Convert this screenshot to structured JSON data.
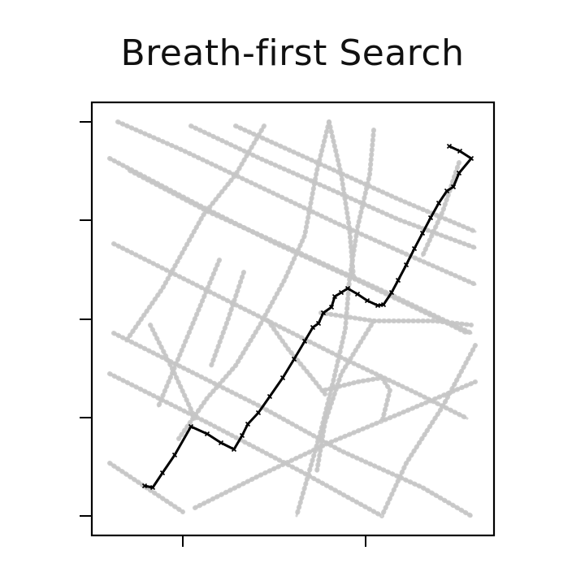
{
  "chart_data": {
    "type": "line",
    "title": "Breath-first Search",
    "xlabel": "",
    "ylabel": "",
    "x_tick_labels": [
      "",
      ""
    ],
    "y_tick_labels": [
      "",
      "",
      "",
      "",
      ""
    ],
    "grid": false,
    "legend": "none",
    "colors": {
      "network": "#c4c4c4",
      "search_path": "#000000",
      "frame": "#000000"
    },
    "network_edges": [
      [
        [
          145,
          150
        ],
        [
          225,
          185
        ],
        [
          320,
          230
        ],
        [
          415,
          275
        ],
        [
          505,
          315
        ],
        [
          585,
          350
        ]
      ],
      [
        [
          135,
          195
        ],
        [
          240,
          250
        ],
        [
          340,
          300
        ],
        [
          440,
          345
        ],
        [
          545,
          395
        ],
        [
          575,
          410
        ]
      ],
      [
        [
          160,
          210
        ],
        [
          255,
          260
        ],
        [
          355,
          305
        ],
        [
          465,
          355
        ],
        [
          580,
          410
        ]
      ],
      [
        [
          235,
          155
        ],
        [
          320,
          195
        ],
        [
          400,
          230
        ],
        [
          490,
          270
        ],
        [
          585,
          305
        ]
      ],
      [
        [
          290,
          155
        ],
        [
          390,
          200
        ],
        [
          490,
          245
        ],
        [
          585,
          285
        ]
      ],
      [
        [
          140,
          300
        ],
        [
          240,
          350
        ],
        [
          330,
          395
        ],
        [
          420,
          440
        ],
        [
          515,
          485
        ],
        [
          575,
          515
        ]
      ],
      [
        [
          140,
          410
        ],
        [
          220,
          450
        ],
        [
          320,
          500
        ],
        [
          420,
          555
        ],
        [
          520,
          600
        ],
        [
          580,
          635
        ]
      ],
      [
        [
          135,
          460
        ],
        [
          255,
          520
        ],
        [
          370,
          580
        ],
        [
          470,
          635
        ]
      ],
      [
        [
          135,
          570
        ],
        [
          225,
          630
        ]
      ],
      [
        [
          240,
          625
        ],
        [
          320,
          585
        ],
        [
          405,
          545
        ],
        [
          490,
          510
        ],
        [
          585,
          470
        ]
      ],
      [
        [
          325,
          155
        ],
        [
          290,
          215
        ],
        [
          250,
          265
        ],
        [
          200,
          355
        ],
        [
          155,
          420
        ]
      ],
      [
        [
          460,
          160
        ],
        [
          455,
          215
        ],
        [
          440,
          280
        ],
        [
          430,
          345
        ],
        [
          425,
          405
        ],
        [
          410,
          470
        ],
        [
          395,
          530
        ],
        [
          375,
          600
        ],
        [
          365,
          635
        ]
      ],
      [
        [
          405,
          150
        ],
        [
          390,
          210
        ],
        [
          375,
          290
        ],
        [
          350,
          345
        ],
        [
          320,
          400
        ],
        [
          290,
          450
        ],
        [
          255,
          490
        ],
        [
          220,
          540
        ]
      ],
      [
        [
          395,
          385
        ],
        [
          460,
          395
        ],
        [
          535,
          395
        ],
        [
          580,
          400
        ]
      ],
      [
        [
          400,
          480
        ],
        [
          440,
          470
        ],
        [
          470,
          465
        ],
        [
          480,
          480
        ],
        [
          470,
          520
        ]
      ],
      [
        [
          460,
          395
        ],
        [
          420,
          460
        ],
        [
          400,
          520
        ],
        [
          390,
          580
        ]
      ],
      [
        [
          270,
          320
        ],
        [
          245,
          380
        ],
        [
          220,
          440
        ],
        [
          195,
          500
        ]
      ],
      [
        [
          300,
          335
        ],
        [
          280,
          395
        ],
        [
          260,
          450
        ]
      ],
      [
        [
          585,
          425
        ],
        [
          545,
          500
        ],
        [
          500,
          570
        ],
        [
          470,
          635
        ]
      ],
      [
        [
          330,
          395
        ],
        [
          355,
          430
        ],
        [
          380,
          460
        ],
        [
          400,
          485
        ]
      ],
      [
        [
          405,
          150
        ],
        [
          420,
          215
        ],
        [
          430,
          280
        ],
        [
          435,
          340
        ]
      ],
      [
        [
          185,
          400
        ],
        [
          215,
          460
        ],
        [
          240,
          515
        ]
      ],
      [
        [
          565,
          200
        ],
        [
          545,
          260
        ],
        [
          520,
          315
        ]
      ]
    ],
    "search_path": [
      [
        178,
        598
      ],
      [
        188,
        600
      ],
      [
        200,
        582
      ],
      [
        215,
        560
      ],
      [
        235,
        525
      ],
      [
        255,
        534
      ],
      [
        272,
        545
      ],
      [
        288,
        553
      ],
      [
        298,
        536
      ],
      [
        305,
        522
      ],
      [
        318,
        508
      ],
      [
        332,
        488
      ],
      [
        348,
        465
      ],
      [
        362,
        442
      ],
      [
        375,
        420
      ],
      [
        385,
        403
      ],
      [
        392,
        398
      ],
      [
        398,
        385
      ],
      [
        408,
        378
      ],
      [
        412,
        365
      ],
      [
        420,
        360
      ],
      [
        428,
        355
      ],
      [
        440,
        362
      ],
      [
        452,
        370
      ],
      [
        465,
        376
      ],
      [
        472,
        375
      ],
      [
        482,
        360
      ],
      [
        490,
        345
      ],
      [
        500,
        326
      ],
      [
        510,
        306
      ],
      [
        520,
        287
      ],
      [
        530,
        268
      ],
      [
        540,
        250
      ],
      [
        550,
        235
      ],
      [
        558,
        230
      ],
      [
        565,
        213
      ],
      [
        580,
        195
      ],
      [
        566,
        186
      ],
      [
        553,
        180
      ]
    ]
  }
}
